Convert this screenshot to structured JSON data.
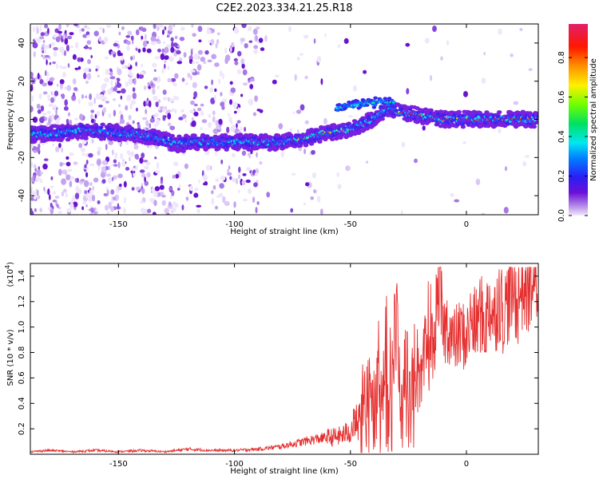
{
  "title": "C2E2.2023.334.21.25.R18",
  "chart_data": [
    {
      "type": "heatmap",
      "xlabel": "Height of straight line (km)",
      "ylabel": "Frequency (Hz)",
      "xlim": [
        -188,
        31
      ],
      "ylim": [
        -50,
        50
      ],
      "x_ticks": [
        -150,
        -100,
        -50,
        0
      ],
      "y_ticks": [
        -40,
        -20,
        0,
        20,
        40
      ],
      "colorbar": {
        "label": "Normalized spectral amplitude",
        "range": [
          0,
          0.97
        ],
        "ticks": [
          0.0,
          0.2,
          0.4,
          0.6,
          0.8
        ],
        "tick_labels": [
          "0.0",
          "0.2",
          "0.4",
          "0.6",
          "0.8"
        ]
      },
      "ridge": [
        {
          "x": -185,
          "y": -8
        },
        {
          "x": -175,
          "y": -7
        },
        {
          "x": -165,
          "y": -6
        },
        {
          "x": -150,
          "y": -7
        },
        {
          "x": -135,
          "y": -9
        },
        {
          "x": -125,
          "y": -13
        },
        {
          "x": -115,
          "y": -12
        },
        {
          "x": -100,
          "y": -12
        },
        {
          "x": -90,
          "y": -12
        },
        {
          "x": -80,
          "y": -12
        },
        {
          "x": -70,
          "y": -10
        },
        {
          "x": -60,
          "y": -7
        },
        {
          "x": -50,
          "y": -5
        },
        {
          "x": -40,
          "y": 0
        },
        {
          "x": -35,
          "y": 5
        },
        {
          "x": -30,
          "y": 4
        },
        {
          "x": -20,
          "y": 2
        },
        {
          "x": -10,
          "y": 0
        },
        {
          "x": 0,
          "y": 0
        },
        {
          "x": 10,
          "y": 0
        },
        {
          "x": 20,
          "y": 0
        },
        {
          "x": 30,
          "y": 0
        }
      ],
      "upper_branch": [
        {
          "x": -55,
          "y": 6
        },
        {
          "x": -45,
          "y": 8
        },
        {
          "x": -38,
          "y": 9
        },
        {
          "x": -32,
          "y": 9
        }
      ]
    },
    {
      "type": "line",
      "xlabel": "Height of straight line (km)",
      "ylabel": "SNR (10 * v/v)",
      "multiplier": "(x10",
      "multiplier_exp": "4",
      "multiplier_close": ")",
      "xlim": [
        -188,
        31
      ],
      "ylim": [
        0,
        1.5
      ],
      "x_ticks": [
        -150,
        -100,
        -50,
        0
      ],
      "y_ticks": [
        0.2,
        0.4,
        0.6,
        0.8,
        1.0,
        1.2,
        1.4
      ],
      "line_color": "#e53030",
      "series": [
        {
          "x": [
            -188,
            -180,
            -170,
            -160,
            -150,
            -140,
            -130,
            -120,
            -110,
            -100,
            -90,
            -80,
            -75,
            -70,
            -65,
            -60,
            -55,
            -50,
            -47,
            -45,
            -43,
            -40,
            -38,
            -36,
            -34,
            -32,
            -30,
            -28,
            -26,
            -24,
            -22,
            -20,
            -18,
            -16,
            -14,
            -12,
            -10,
            -8,
            -6,
            -4,
            -2,
            0,
            2,
            4,
            6,
            8,
            10,
            12,
            14,
            16,
            18,
            20,
            22,
            24,
            26,
            28,
            30
          ],
          "y": [
            0.02,
            0.03,
            0.02,
            0.03,
            0.02,
            0.03,
            0.02,
            0.04,
            0.03,
            0.03,
            0.04,
            0.06,
            0.08,
            0.1,
            0.12,
            0.13,
            0.14,
            0.18,
            0.3,
            0.45,
            0.55,
            0.4,
            0.75,
            0.5,
            0.95,
            0.7,
            1.0,
            0.35,
            0.75,
            0.45,
            0.8,
            0.45,
            0.7,
            1.0,
            0.8,
            1.42,
            0.95,
            1.02,
            0.88,
            0.92,
            0.95,
            0.9,
            1.05,
            1.0,
            1.12,
            1.0,
            1.2,
            1.06,
            1.25,
            1.1,
            1.22,
            1.3,
            1.2,
            1.35,
            1.3,
            1.38,
            1.35
          ]
        }
      ]
    }
  ]
}
